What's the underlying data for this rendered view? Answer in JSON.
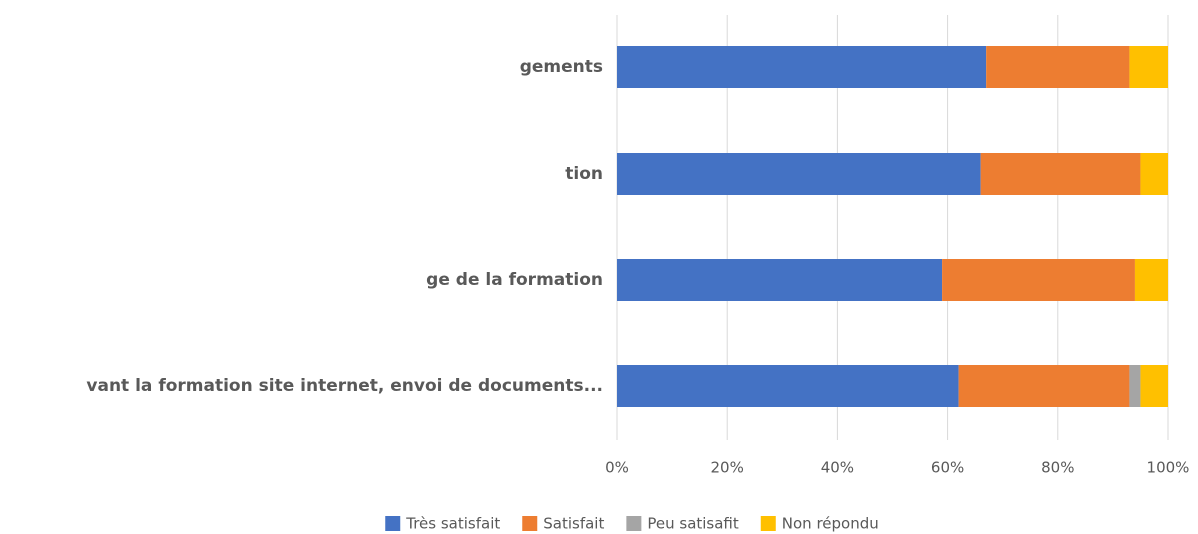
{
  "chart_data": {
    "type": "stacked_bar_horizontal",
    "categories": [
      "gements",
      "tion",
      "ge de la formation",
      "vant la formation site internet, envoi de documents..."
    ],
    "series": [
      {
        "name": "Très satisfait",
        "color": "#4472c4",
        "values": [
          67,
          66,
          59,
          62
        ]
      },
      {
        "name": "Satisfait",
        "color": "#ed7d31",
        "values": [
          26,
          29,
          35,
          31
        ]
      },
      {
        "name": "Peu satisafit",
        "color": "#a5a5a5",
        "values": [
          0,
          0,
          0,
          2
        ]
      },
      {
        "name": "Non répondu",
        "color": "#ffc000",
        "values": [
          7,
          5,
          6,
          5
        ]
      }
    ],
    "xlim": [
      0,
      100
    ],
    "xticks": [
      {
        "value": 0,
        "label": "0%"
      },
      {
        "value": 20,
        "label": "20%"
      },
      {
        "value": 40,
        "label": "40%"
      },
      {
        "value": 60,
        "label": "60%"
      },
      {
        "value": 80,
        "label": "80%"
      },
      {
        "value": 100,
        "label": "100%"
      }
    ],
    "grid": true,
    "legend": "bottom"
  }
}
